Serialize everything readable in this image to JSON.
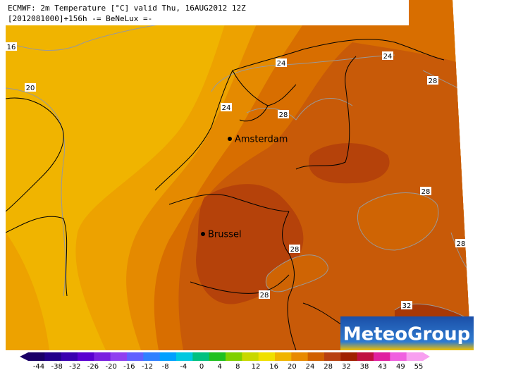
{
  "header": {
    "line1": "ECMWF: 2m Temperature [°C] valid Thu, 16AUG2012 12Z",
    "line2": "[2012081000]+156h -= BeNeLux =-"
  },
  "contour_labels": [
    "16",
    "20",
    "24",
    "24",
    "24",
    "28",
    "28",
    "28",
    "28",
    "28",
    "28",
    "32"
  ],
  "cities": [
    "Amsterdam",
    "Brussel"
  ],
  "colorbar": {
    "labels": [
      "-44",
      "-38",
      "-32",
      "-26",
      "-20",
      "-16",
      "-12",
      "-8",
      "-4",
      "0",
      "4",
      "8",
      "12",
      "16",
      "20",
      "24",
      "28",
      "32",
      "38",
      "43",
      "49",
      "55"
    ]
  },
  "logo": "MeteoGroup"
}
